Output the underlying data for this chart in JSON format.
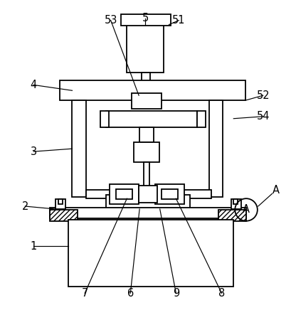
{
  "bg_color": "#ffffff",
  "line_color": "#000000",
  "figsize": [
    4.09,
    4.43
  ],
  "dpi": 100
}
